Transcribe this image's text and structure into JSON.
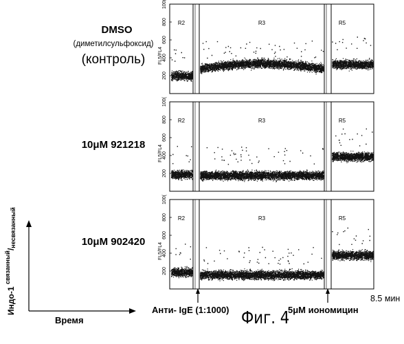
{
  "conditions": [
    {
      "name": "DMSO",
      "subtitle": "(диметилсульфоксид)",
      "note": "(контроль)"
    },
    {
      "name": "10μM 921218"
    },
    {
      "name": "10μM 902420"
    }
  ],
  "ylabel_main": "Индо-1",
  "ylabel_num": "связанный",
  "ylabel_den": "несвязанный",
  "xlabel": "Время",
  "annotation_left": "Анти- IgE (1:1000)",
  "annotation_right": "5μM иономицин",
  "time_label": "8.5 мин",
  "figure_caption": "Фиг. 4",
  "chart_data": {
    "type": "scatter",
    "panel_ylabel": "FL5/FL4",
    "ylim": [
      0,
      1000
    ],
    "yticks": [
      "200",
      "400",
      "600",
      "800",
      "100("
    ],
    "regions": [
      "R2",
      "R3",
      "R5"
    ],
    "panels": [
      {
        "condition": "DMSO",
        "levels": {
          "R2": 200,
          "R3": 280,
          "R5": 330
        }
      },
      {
        "condition": "10μM 921218",
        "levels": {
          "R2": 190,
          "R3": 180,
          "R5": 390
        }
      },
      {
        "condition": "10μM 902420",
        "levels": {
          "R2": 190,
          "R3": 160,
          "R5": 380
        }
      }
    ]
  }
}
